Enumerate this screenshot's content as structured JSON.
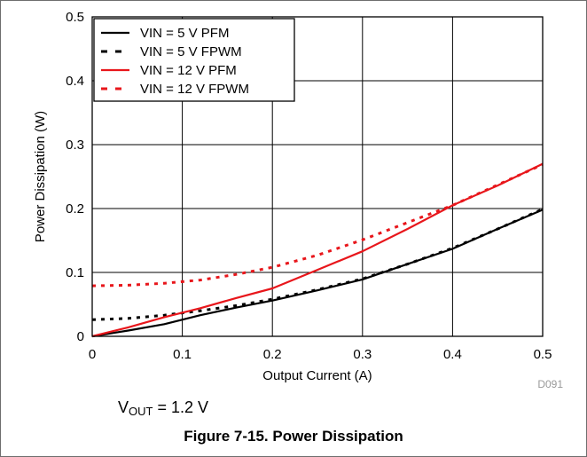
{
  "chart_data": {
    "type": "line",
    "xlabel": "Output Current (A)",
    "ylabel": "Power Dissipation (W)",
    "xlim": [
      0,
      0.5
    ],
    "ylim": [
      0,
      0.5
    ],
    "x_ticks": [
      "0",
      "0.1",
      "0.2",
      "0.3",
      "0.4",
      "0.5"
    ],
    "y_ticks": [
      "0",
      "0.1",
      "0.2",
      "0.3",
      "0.4",
      "0.5"
    ],
    "grid": true,
    "legend_position": "top-left",
    "series": [
      {
        "name": "VIN = 5 V  PFM",
        "color": "#000000",
        "style": "solid",
        "points": [
          [
            0,
            0.0
          ],
          [
            0.04,
            0.009
          ],
          [
            0.08,
            0.019
          ],
          [
            0.12,
            0.033
          ],
          [
            0.16,
            0.045
          ],
          [
            0.2,
            0.056
          ],
          [
            0.25,
            0.072
          ],
          [
            0.3,
            0.089
          ],
          [
            0.35,
            0.113
          ],
          [
            0.4,
            0.137
          ],
          [
            0.45,
            0.168
          ],
          [
            0.5,
            0.198
          ]
        ]
      },
      {
        "name": "VIN = 5 V  FPWM",
        "color": "#000000",
        "style": "dotted",
        "points": [
          [
            0,
            0.026
          ],
          [
            0.04,
            0.028
          ],
          [
            0.08,
            0.033
          ],
          [
            0.12,
            0.04
          ],
          [
            0.16,
            0.048
          ],
          [
            0.2,
            0.058
          ],
          [
            0.25,
            0.073
          ],
          [
            0.3,
            0.09
          ],
          [
            0.35,
            0.113
          ],
          [
            0.4,
            0.138
          ],
          [
            0.45,
            0.168
          ],
          [
            0.5,
            0.199
          ]
        ]
      },
      {
        "name": "VIN = 12 V PFM",
        "color": "#e8161b",
        "style": "solid",
        "points": [
          [
            0,
            0.0
          ],
          [
            0.04,
            0.014
          ],
          [
            0.08,
            0.03
          ],
          [
            0.12,
            0.044
          ],
          [
            0.16,
            0.06
          ],
          [
            0.2,
            0.075
          ],
          [
            0.25,
            0.104
          ],
          [
            0.3,
            0.133
          ],
          [
            0.35,
            0.168
          ],
          [
            0.4,
            0.205
          ],
          [
            0.45,
            0.236
          ],
          [
            0.5,
            0.27
          ]
        ]
      },
      {
        "name": "VIN = 12 V FPWM",
        "color": "#e8161b",
        "style": "dotted",
        "points": [
          [
            0,
            0.079
          ],
          [
            0.04,
            0.08
          ],
          [
            0.08,
            0.083
          ],
          [
            0.12,
            0.088
          ],
          [
            0.16,
            0.097
          ],
          [
            0.2,
            0.108
          ],
          [
            0.25,
            0.127
          ],
          [
            0.3,
            0.151
          ],
          [
            0.35,
            0.178
          ],
          [
            0.4,
            0.205
          ],
          [
            0.45,
            0.237
          ],
          [
            0.5,
            0.269
          ]
        ]
      }
    ]
  },
  "annotations": {
    "code": "D091",
    "vout_label": "V",
    "vout_sub": "OUT",
    "vout_value": " = 1.2 V"
  },
  "caption": "Figure 7-15. Power Dissipation"
}
